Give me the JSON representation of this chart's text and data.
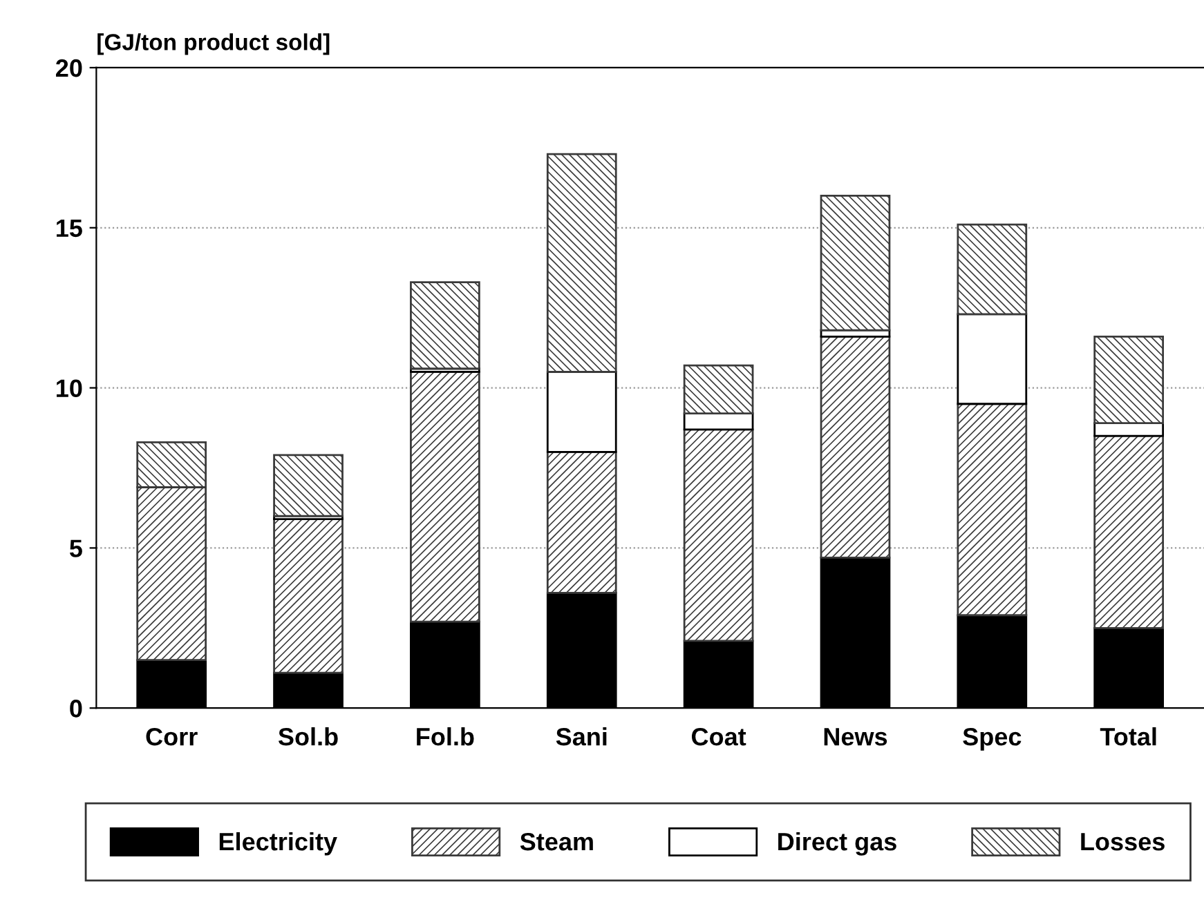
{
  "chart_data": {
    "type": "bar",
    "stacked": true,
    "ylabel": "[GJ/ton product sold]",
    "categories": [
      "Corr",
      "Sol.b",
      "Fol.b",
      "Sani",
      "Coat",
      "News",
      "Spec",
      "Total"
    ],
    "series": [
      {
        "name": "Electricity",
        "color": "#000000",
        "values": [
          1.5,
          1.1,
          2.7,
          3.6,
          2.1,
          4.7,
          2.9,
          2.5
        ]
      },
      {
        "name": "Steam",
        "color": "#3a3a3a",
        "values": [
          5.4,
          4.8,
          7.8,
          4.4,
          6.6,
          6.9,
          6.6,
          6.0
        ]
      },
      {
        "name": "Direct gas",
        "color": "#ffffff",
        "values": [
          0,
          0.1,
          0.1,
          2.5,
          0.5,
          0.2,
          2.8,
          0.4
        ]
      },
      {
        "name": "Losses",
        "color": "#3a3a3a",
        "values": [
          1.4,
          1.9,
          2.7,
          6.8,
          1.5,
          4.2,
          2.8,
          2.7
        ]
      }
    ],
    "ylim": [
      0,
      20
    ],
    "yticks": [
      0,
      5,
      10,
      15,
      20
    ],
    "grid": "y",
    "legend": "bottom"
  }
}
